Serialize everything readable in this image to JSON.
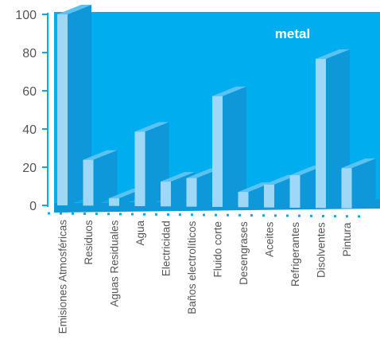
{
  "chart_data": {
    "type": "bar",
    "title": "metal",
    "categories": [
      "Emisiones Atmosféricas",
      "Residuos",
      "Aguas Residuales",
      "Agua",
      "Electricidad",
      "Baños electrolíticos",
      "Fluido corte",
      "Desengrases",
      "Aceites",
      "Refrigerantes",
      "Disolventes",
      "Pintura"
    ],
    "values": [
      100,
      24,
      4,
      39,
      13,
      15,
      58,
      8,
      12,
      17,
      78,
      21
    ],
    "ylim": [
      0,
      100
    ],
    "yticks": [
      "0",
      "20",
      "40",
      "60",
      "80",
      "100"
    ],
    "xlabel": "",
    "ylabel": "",
    "colors": {
      "background": "#00AEEF",
      "bar_front": "#9ED8F6",
      "bar_side": "#0E97D9",
      "bar_top": "#5BC2F0",
      "axis": "#00AEEF",
      "text": "#555555",
      "title": "#ffffff"
    }
  }
}
